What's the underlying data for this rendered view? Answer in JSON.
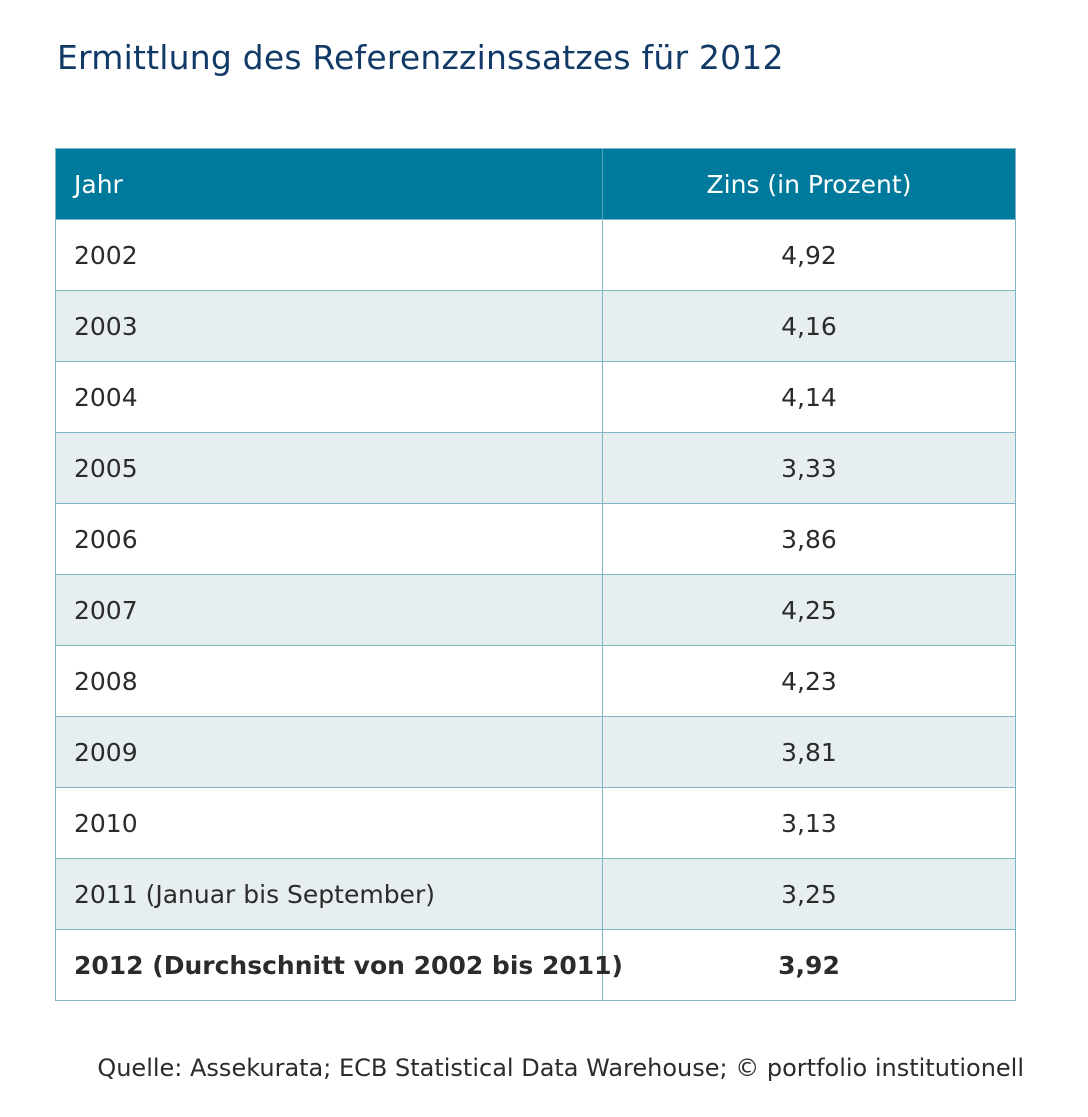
{
  "title": "Ermittlung des Referenzzinssatzes für 2012",
  "table": {
    "headers": {
      "year": "Jahr",
      "rate": "Zins (in Prozent)"
    },
    "rows": [
      {
        "year": "2002",
        "rate": "4,92"
      },
      {
        "year": "2003",
        "rate": "4,16"
      },
      {
        "year": "2004",
        "rate": "4,14"
      },
      {
        "year": "2005",
        "rate": "3,33"
      },
      {
        "year": "2006",
        "rate": "3,86"
      },
      {
        "year": "2007",
        "rate": "4,25"
      },
      {
        "year": "2008",
        "rate": "4,23"
      },
      {
        "year": "2009",
        "rate": "3,81"
      },
      {
        "year": "2010",
        "rate": "3,13"
      },
      {
        "year": "2011 (Januar bis September)",
        "rate": "3,25"
      }
    ],
    "total": {
      "year": "2012 (Durchschnitt von 2002 bis 2011)",
      "rate": "3,92"
    }
  },
  "source": "Quelle: Assekurata; ECB Statistical Data Warehouse; © portfolio institutionell",
  "colors": {
    "header_bg": "#007a9c",
    "title": "#123a66",
    "stripe": "#e6eef0",
    "border": "#7fb5c4"
  }
}
